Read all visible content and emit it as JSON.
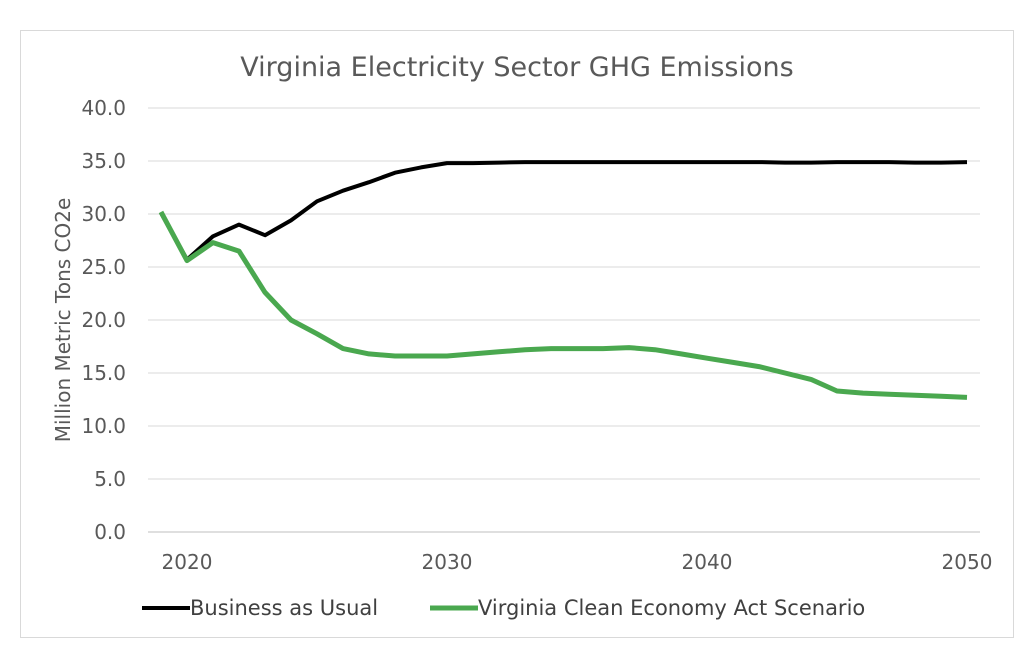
{
  "chart_data": {
    "type": "line",
    "title": "Virginia Electricity Sector GHG Emissions",
    "xlabel": "",
    "ylabel": "Million Metric Tons CO2e",
    "xlim": [
      2018.5,
      2050.5
    ],
    "ylim": [
      0,
      40
    ],
    "x_ticks": [
      "2020",
      "2030",
      "2040",
      "2050"
    ],
    "y_ticks": [
      "0.0",
      "5.0",
      "10.0",
      "15.0",
      "20.0",
      "25.0",
      "30.0",
      "35.0",
      "40.0"
    ],
    "grid": "horizontal",
    "legend_position": "bottom",
    "x": [
      2019,
      2020,
      2021,
      2022,
      2023,
      2024,
      2025,
      2026,
      2027,
      2028,
      2029,
      2030,
      2031,
      2032,
      2033,
      2034,
      2035,
      2036,
      2037,
      2038,
      2039,
      2040,
      2041,
      2042,
      2043,
      2044,
      2045,
      2046,
      2047,
      2048,
      2049,
      2050
    ],
    "series": [
      {
        "name": "Business as Usual",
        "color": "#000000",
        "values": [
          30.1,
          25.7,
          27.9,
          29.0,
          28.0,
          29.4,
          31.2,
          32.2,
          33.0,
          33.9,
          34.4,
          34.8,
          34.8,
          34.85,
          34.9,
          34.9,
          34.9,
          34.9,
          34.9,
          34.9,
          34.9,
          34.9,
          34.9,
          34.9,
          34.85,
          34.85,
          34.9,
          34.9,
          34.9,
          34.85,
          34.85,
          34.9
        ]
      },
      {
        "name": "Virginia Clean Economy Act Scenario",
        "color": "#4aa84f",
        "values": [
          30.2,
          25.6,
          27.3,
          26.5,
          22.6,
          20.0,
          18.7,
          17.3,
          16.8,
          16.6,
          16.6,
          16.6,
          16.8,
          17.0,
          17.2,
          17.3,
          17.3,
          17.3,
          17.4,
          17.2,
          16.8,
          16.4,
          16.0,
          15.6,
          15.0,
          14.4,
          13.3,
          13.1,
          13.0,
          12.9,
          12.8,
          12.7
        ]
      }
    ]
  }
}
